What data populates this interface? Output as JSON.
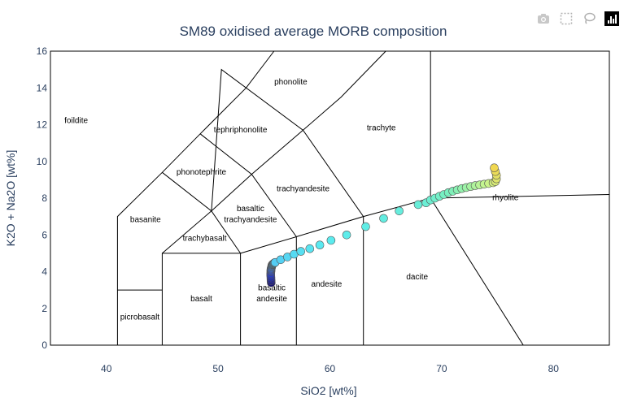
{
  "modebar": {
    "icons": [
      "camera-icon",
      "box-select-icon",
      "lasso-icon",
      "plotly-logo-icon"
    ]
  },
  "colors": {
    "axis_text": "#2a3f5f",
    "line": "#000000",
    "marker_outline": "#555555"
  },
  "chart_data": {
    "type": "scatter",
    "title": "SM89 oxidised average MORB composition",
    "xlabel": "SiO2 [wt%]",
    "ylabel": "K2O + Na2O [wt%]",
    "xlim": [
      35,
      85
    ],
    "ylim": [
      0,
      16
    ],
    "xticks": [
      "40",
      "50",
      "60",
      "70",
      "80"
    ],
    "yticks": [
      "0",
      "2",
      "4",
      "6",
      "8",
      "10",
      "12",
      "14",
      "16"
    ],
    "xtick_values": [
      40,
      50,
      60,
      70,
      80
    ],
    "ytick_values": [
      0,
      2,
      4,
      6,
      8,
      10,
      12,
      14,
      16
    ],
    "boundaries": [
      [
        [
          41,
          0
        ],
        [
          41,
          7
        ],
        [
          45,
          9.4
        ],
        [
          48.4,
          11.5
        ],
        [
          52.5,
          14
        ],
        [
          55,
          16
        ]
      ],
      [
        [
          41,
          3
        ],
        [
          45,
          3
        ]
      ],
      [
        [
          45,
          0
        ],
        [
          45,
          5
        ],
        [
          52,
          5
        ],
        [
          52,
          0
        ]
      ],
      [
        [
          52,
          5
        ],
        [
          57,
          5.9
        ],
        [
          57,
          0
        ]
      ],
      [
        [
          57,
          5.9
        ],
        [
          63,
          7
        ],
        [
          63,
          0
        ]
      ],
      [
        [
          63,
          7
        ],
        [
          69,
          8
        ],
        [
          77.3,
          0
        ]
      ],
      [
        [
          69,
          8
        ],
        [
          69,
          16
        ]
      ],
      [
        [
          45,
          5
        ],
        [
          49.4,
          7.3
        ],
        [
          53,
          9.3
        ],
        [
          57.6,
          11.7
        ],
        [
          61,
          13.5
        ],
        [
          65,
          16
        ]
      ],
      [
        [
          52,
          5
        ],
        [
          49.4,
          7.3
        ],
        [
          45,
          9.4
        ]
      ],
      [
        [
          57,
          5.9
        ],
        [
          53,
          9.3
        ],
        [
          48.4,
          11.5
        ]
      ],
      [
        [
          63,
          7
        ],
        [
          57.6,
          11.7
        ],
        [
          50.3,
          15
        ],
        [
          49.4,
          7.3
        ]
      ],
      [
        [
          69,
          8
        ],
        [
          85,
          8.2
        ]
      ]
    ],
    "field_labels": [
      {
        "text": "foildite",
        "x": 37.3,
        "y": 12.2
      },
      {
        "text": "phonolite",
        "x": 56.5,
        "y": 14.3
      },
      {
        "text": "tephriphonolite",
        "x": 52,
        "y": 11.7
      },
      {
        "text": "trachyte",
        "x": 64.6,
        "y": 11.8
      },
      {
        "text": "phonotephrite",
        "x": 48.5,
        "y": 9.4
      },
      {
        "text": "trachyandesite",
        "x": 57.6,
        "y": 8.5
      },
      {
        "text": "basanite",
        "x": 43.5,
        "y": 6.8
      },
      {
        "text": "basaltic",
        "x": 52.9,
        "y": 7.4
      },
      {
        "text": "trachyandesite",
        "x": 52.9,
        "y": 6.8
      },
      {
        "text": "rhyolite",
        "x": 75.7,
        "y": 8
      },
      {
        "text": "trachybasalt",
        "x": 48.8,
        "y": 5.8
      },
      {
        "text": "basaltic",
        "x": 54.8,
        "y": 3.1
      },
      {
        "text": "andesite",
        "x": 54.8,
        "y": 2.5
      },
      {
        "text": "andesite",
        "x": 59.7,
        "y": 3.3
      },
      {
        "text": "dacite",
        "x": 67.8,
        "y": 3.7
      },
      {
        "text": "basalt",
        "x": 48.5,
        "y": 2.5
      },
      {
        "text": "picrobasalt",
        "x": 43,
        "y": 1.5
      }
    ],
    "series": [
      {
        "name": "SM89 oxidised average MORB",
        "x": [
          54.75,
          54.74,
          54.73,
          54.72,
          54.71,
          54.71,
          54.72,
          54.72,
          54.73,
          54.74,
          54.76,
          54.78,
          54.8,
          54.82,
          54.85,
          54.88,
          54.92,
          54.96,
          55.0,
          55.05,
          55.1,
          55.6,
          56.2,
          56.8,
          57.4,
          58.2,
          59.1,
          60.1,
          61.5,
          63.2,
          64.8,
          66.2,
          67.9,
          68.6,
          69.0,
          69.4,
          69.8,
          70.2,
          70.6,
          71.0,
          71.4,
          71.8,
          72.2,
          72.6,
          73.0,
          73.4,
          73.8,
          74.2,
          74.6,
          74.8,
          74.9,
          74.9,
          74.8,
          74.7
        ],
        "y": [
          3.4,
          3.5,
          3.6,
          3.7,
          3.8,
          3.9,
          4.0,
          4.05,
          4.1,
          4.15,
          4.2,
          4.25,
          4.3,
          4.35,
          4.38,
          4.4,
          4.42,
          4.44,
          4.46,
          4.48,
          4.5,
          4.65,
          4.8,
          4.95,
          5.1,
          5.25,
          5.45,
          5.7,
          6.0,
          6.45,
          6.9,
          7.3,
          7.65,
          7.75,
          7.9,
          8.0,
          8.1,
          8.2,
          8.3,
          8.38,
          8.45,
          8.52,
          8.58,
          8.63,
          8.68,
          8.72,
          8.76,
          8.8,
          8.84,
          8.9,
          9.05,
          9.25,
          9.45,
          9.65
        ]
      }
    ]
  }
}
